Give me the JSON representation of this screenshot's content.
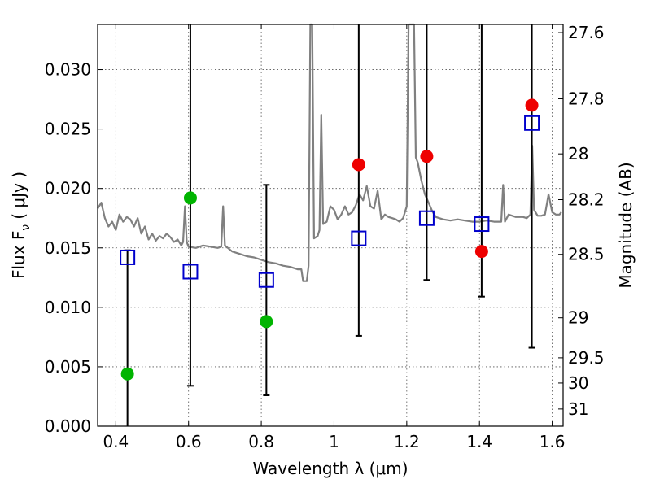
{
  "chart_data": {
    "type": "scatter",
    "xlabel": "Wavelength  λ (μm)",
    "ylabel": "Flux  F",
    "ylabel_sub": "ν",
    "ylabel_unit": "( μJy )",
    "y2label": "Magnitude (AB)",
    "xlim": [
      0.35,
      1.63
    ],
    "ylim": [
      0.0,
      0.0338
    ],
    "grid": true,
    "x_ticks": [
      0.4,
      0.6,
      0.8,
      1.0,
      1.2,
      1.4,
      1.6
    ],
    "x_tick_labels": [
      "0.4",
      "0.6",
      "0.8",
      "1",
      "1.2",
      "1.4",
      "1.6"
    ],
    "y_ticks": [
      0.0,
      0.005,
      0.01,
      0.015,
      0.02,
      0.025,
      0.03
    ],
    "y_tick_labels": [
      "0.000",
      "0.005",
      "0.010",
      "0.015",
      "0.020",
      "0.025",
      "0.030"
    ],
    "y2_tick_labels": [
      "27.6",
      "27.8",
      "28",
      "28.2",
      "28.5",
      "29",
      "29.5",
      "30",
      "31"
    ],
    "y2_tick_mags": [
      27.6,
      27.8,
      28.0,
      28.2,
      28.5,
      29.0,
      29.5,
      30.0,
      31.0
    ],
    "colors": {
      "green": "#00b400",
      "red": "#ee0000",
      "model_box": "#0000cc",
      "spectrum": "#808080",
      "errorbar": "#000000"
    },
    "series": [
      {
        "marker": "circle",
        "color_key": "green",
        "points": [
          {
            "x": 0.432,
            "y": 0.0044,
            "err_lo": 0.0044,
            "err_hi": 0.0104
          },
          {
            "x": 0.605,
            "y": 0.0192,
            "err_lo": 0.0158,
            "err_hi": 0.0227
          },
          {
            "x": 0.814,
            "y": 0.0088,
            "err_lo": 0.0062,
            "err_hi": 0.0115
          }
        ]
      },
      {
        "marker": "circle",
        "color_key": "red",
        "points": [
          {
            "x": 1.068,
            "y": 0.022,
            "err_lo": 0.0144,
            "err_hi": 0.0296
          },
          {
            "x": 1.255,
            "y": 0.0227,
            "err_lo": 0.0104,
            "err_hi": 0.0348
          },
          {
            "x": 1.406,
            "y": 0.0147,
            "err_lo": 0.0038,
            "err_hi": 0.0257
          },
          {
            "x": 1.544,
            "y": 0.027,
            "err_lo": 0.0204,
            "err_hi": 0.0335
          }
        ]
      },
      {
        "marker": "open-square",
        "color_key": "model_box",
        "points": [
          {
            "x": 0.432,
            "y": 0.0142
          },
          {
            "x": 0.605,
            "y": 0.013
          },
          {
            "x": 0.814,
            "y": 0.0123
          },
          {
            "x": 1.068,
            "y": 0.0158
          },
          {
            "x": 1.255,
            "y": 0.0175
          },
          {
            "x": 1.406,
            "y": 0.017
          },
          {
            "x": 1.544,
            "y": 0.0255
          }
        ]
      },
      {
        "line": true,
        "color_key": "spectrum",
        "points": [
          [
            0.35,
            0.0183
          ],
          [
            0.36,
            0.0188
          ],
          [
            0.37,
            0.0175
          ],
          [
            0.38,
            0.0168
          ],
          [
            0.39,
            0.0172
          ],
          [
            0.4,
            0.0165
          ],
          [
            0.41,
            0.0178
          ],
          [
            0.42,
            0.0172
          ],
          [
            0.43,
            0.0176
          ],
          [
            0.44,
            0.0174
          ],
          [
            0.45,
            0.0168
          ],
          [
            0.46,
            0.0175
          ],
          [
            0.47,
            0.0162
          ],
          [
            0.48,
            0.0168
          ],
          [
            0.49,
            0.0157
          ],
          [
            0.5,
            0.0162
          ],
          [
            0.51,
            0.0156
          ],
          [
            0.52,
            0.016
          ],
          [
            0.53,
            0.0158
          ],
          [
            0.54,
            0.0162
          ],
          [
            0.55,
            0.0159
          ],
          [
            0.56,
            0.0155
          ],
          [
            0.57,
            0.0157
          ],
          [
            0.58,
            0.0152
          ],
          [
            0.585,
            0.0155
          ],
          [
            0.59,
            0.0185
          ],
          [
            0.595,
            0.0155
          ],
          [
            0.6,
            0.0151
          ],
          [
            0.62,
            0.015
          ],
          [
            0.64,
            0.0152
          ],
          [
            0.66,
            0.0151
          ],
          [
            0.68,
            0.015
          ],
          [
            0.69,
            0.0151
          ],
          [
            0.695,
            0.0185
          ],
          [
            0.7,
            0.0152
          ],
          [
            0.72,
            0.0147
          ],
          [
            0.74,
            0.0145
          ],
          [
            0.76,
            0.0143
          ],
          [
            0.78,
            0.0142
          ],
          [
            0.8,
            0.014
          ],
          [
            0.82,
            0.0138
          ],
          [
            0.84,
            0.0137
          ],
          [
            0.86,
            0.0135
          ],
          [
            0.88,
            0.0134
          ],
          [
            0.9,
            0.0132
          ],
          [
            0.91,
            0.0132
          ],
          [
            0.915,
            0.0122
          ],
          [
            0.925,
            0.0122
          ],
          [
            0.93,
            0.0135
          ],
          [
            0.935,
            0.034
          ],
          [
            0.94,
            0.0338
          ],
          [
            0.945,
            0.0158
          ],
          [
            0.955,
            0.016
          ],
          [
            0.96,
            0.0165
          ],
          [
            0.965,
            0.0262
          ],
          [
            0.97,
            0.017
          ],
          [
            0.98,
            0.0172
          ],
          [
            0.99,
            0.0185
          ],
          [
            1.0,
            0.0182
          ],
          [
            1.01,
            0.0174
          ],
          [
            1.02,
            0.0178
          ],
          [
            1.03,
            0.0185
          ],
          [
            1.04,
            0.0178
          ],
          [
            1.05,
            0.018
          ],
          [
            1.06,
            0.0186
          ],
          [
            1.07,
            0.0195
          ],
          [
            1.08,
            0.019
          ],
          [
            1.09,
            0.0202
          ],
          [
            1.1,
            0.0185
          ],
          [
            1.11,
            0.0183
          ],
          [
            1.12,
            0.0198
          ],
          [
            1.13,
            0.0174
          ],
          [
            1.14,
            0.0178
          ],
          [
            1.15,
            0.0176
          ],
          [
            1.16,
            0.0175
          ],
          [
            1.17,
            0.0174
          ],
          [
            1.18,
            0.0172
          ],
          [
            1.19,
            0.0175
          ],
          [
            1.2,
            0.0185
          ],
          [
            1.205,
            0.0338
          ],
          [
            1.21,
            0.034
          ],
          [
            1.215,
            0.034
          ],
          [
            1.22,
            0.0338
          ],
          [
            1.225,
            0.0226
          ],
          [
            1.23,
            0.0222
          ],
          [
            1.24,
            0.0207
          ],
          [
            1.25,
            0.0195
          ],
          [
            1.26,
            0.0188
          ],
          [
            1.27,
            0.0181
          ],
          [
            1.28,
            0.0176
          ],
          [
            1.3,
            0.0174
          ],
          [
            1.32,
            0.0173
          ],
          [
            1.34,
            0.0174
          ],
          [
            1.36,
            0.0173
          ],
          [
            1.38,
            0.0172
          ],
          [
            1.4,
            0.0172
          ],
          [
            1.42,
            0.0173
          ],
          [
            1.44,
            0.0172
          ],
          [
            1.46,
            0.0172
          ],
          [
            1.465,
            0.0203
          ],
          [
            1.47,
            0.0172
          ],
          [
            1.48,
            0.0178
          ],
          [
            1.5,
            0.0176
          ],
          [
            1.52,
            0.0176
          ],
          [
            1.53,
            0.0175
          ],
          [
            1.54,
            0.0178
          ],
          [
            1.545,
            0.0236
          ],
          [
            1.55,
            0.0182
          ],
          [
            1.56,
            0.0177
          ],
          [
            1.57,
            0.0177
          ],
          [
            1.58,
            0.0178
          ],
          [
            1.59,
            0.0195
          ],
          [
            1.6,
            0.018
          ],
          [
            1.61,
            0.0178
          ],
          [
            1.62,
            0.0178
          ],
          [
            1.625,
            0.018
          ]
        ]
      }
    ]
  }
}
